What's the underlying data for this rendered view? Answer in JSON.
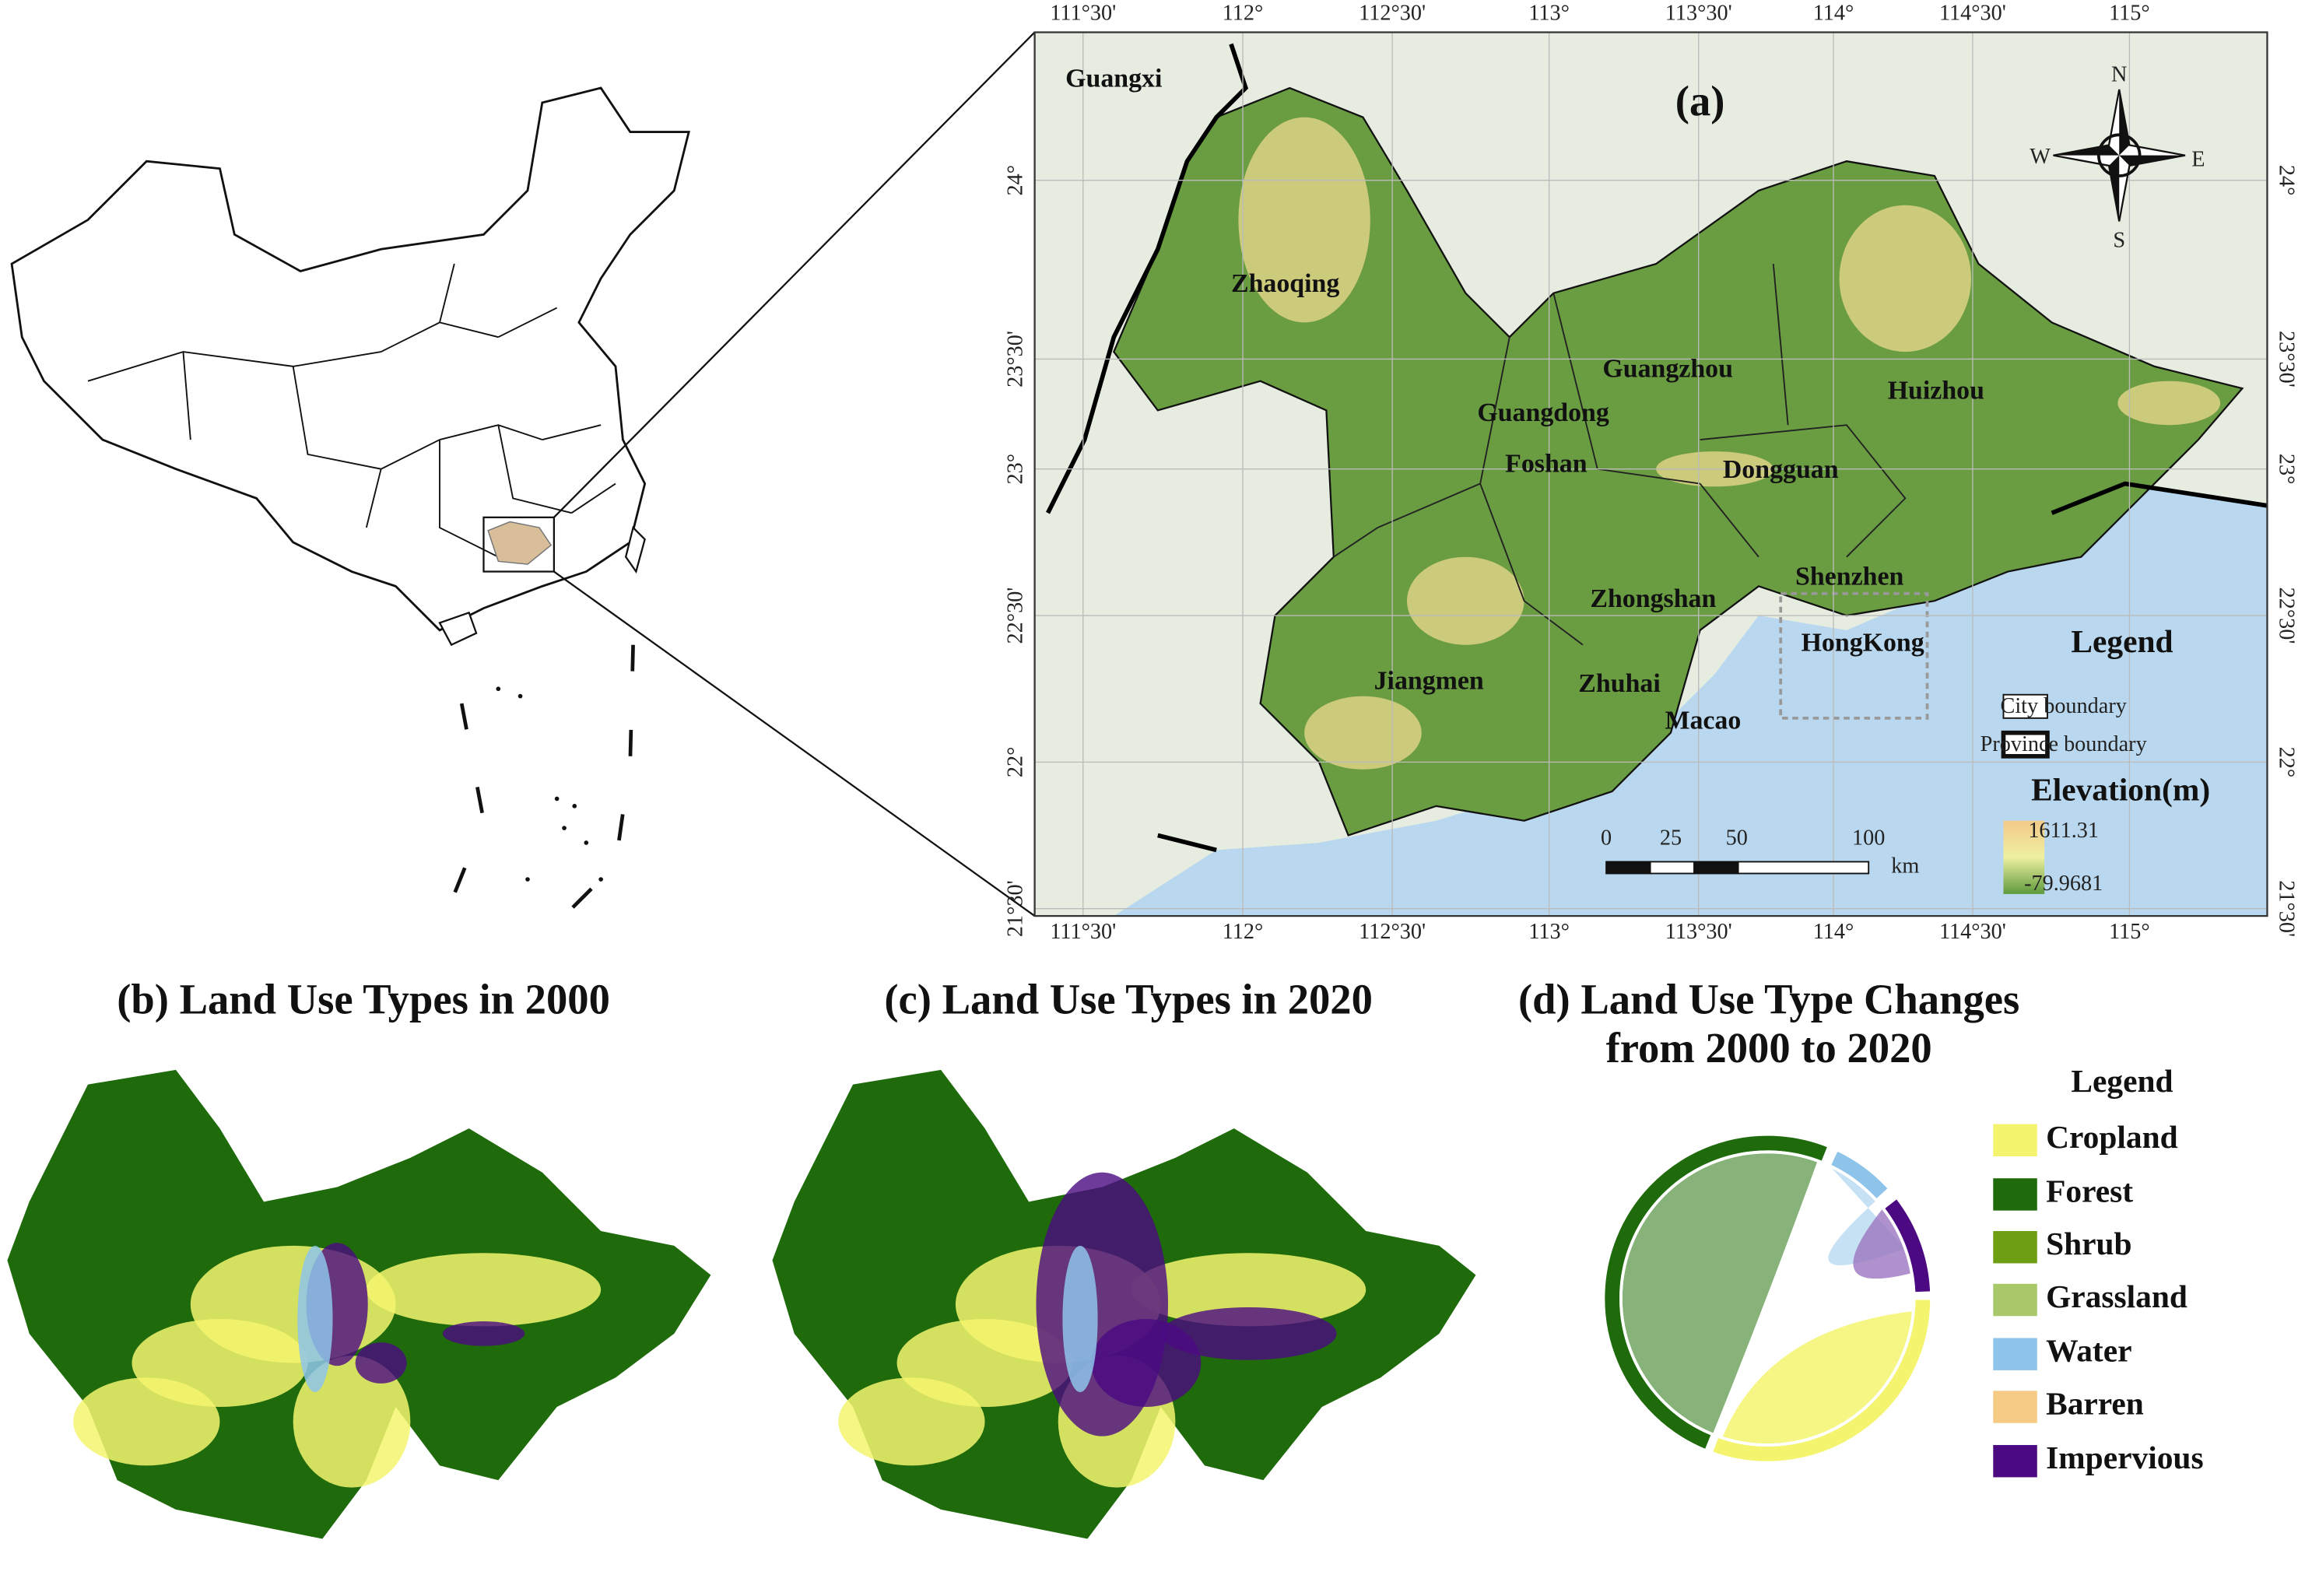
{
  "map_a": {
    "label": "(a)",
    "places": [
      "Guangxi",
      "Guangdong",
      "Zhaoqing",
      "Guangzhou",
      "Huizhou",
      "Foshan",
      "Dongguan",
      "Shenzhen",
      "Zhongshan",
      "HongKong",
      "Jiangmen",
      "Zhuhai",
      "Macao"
    ],
    "lon_labels": [
      "111°30'",
      "112°",
      "112°30'",
      "113°",
      "113°30'",
      "114°",
      "114°30'",
      "115°"
    ],
    "lat_labels": [
      "24°",
      "23°30'",
      "23°",
      "22°30'",
      "22°",
      "21°30'"
    ],
    "compass": [
      "N",
      "E",
      "S",
      "W"
    ],
    "legend": {
      "title": "Legend",
      "items": [
        "City boundary",
        "Province boundary"
      ]
    },
    "elevation": {
      "title": "Elevation(m)",
      "max": 1611.31,
      "min": -79.9681
    },
    "scale_bar": {
      "ticks": [
        0,
        25,
        50,
        100
      ],
      "unit": "km"
    }
  },
  "panel_b": {
    "title": "(b) Land Use Types in 2000"
  },
  "panel_c": {
    "title": "(c) Land Use Types in 2020"
  },
  "panel_d": {
    "title": [
      "(d) Land Use Type Changes",
      "from 2000 to 2020"
    ],
    "legend_title": "Legend",
    "classes": [
      {
        "name": "Cropland",
        "color": "#f4f46e"
      },
      {
        "name": "Forest",
        "color": "#1f6b0c"
      },
      {
        "name": "Shrub",
        "color": "#6e9e12"
      },
      {
        "name": "Grassland",
        "color": "#a8c86a"
      },
      {
        "name": "Water",
        "color": "#8ec4ea"
      },
      {
        "name": "Barren",
        "color": "#f5cb85"
      },
      {
        "name": "Impervious",
        "color": "#4b0a82"
      }
    ]
  }
}
